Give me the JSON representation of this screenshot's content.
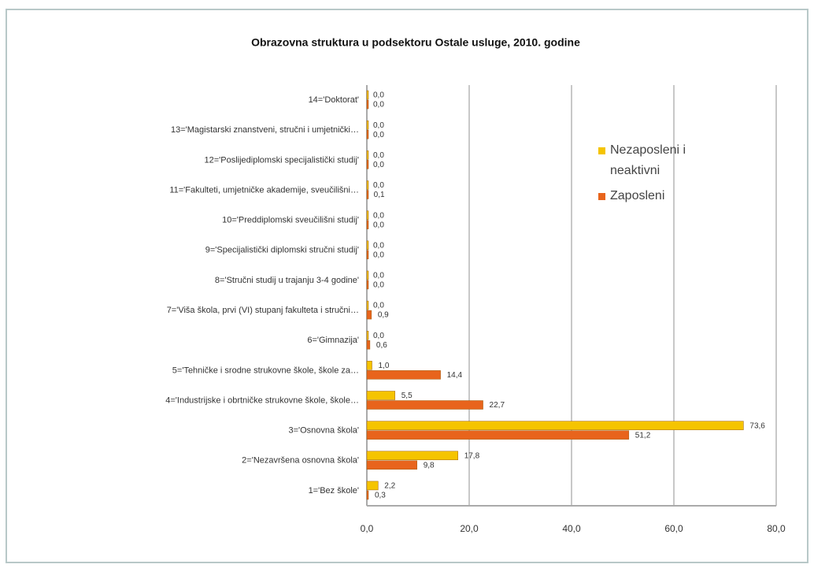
{
  "chart_data": {
    "type": "bar",
    "orientation": "horizontal",
    "title": "Obrazovna struktura u podsektoru Ostale usluge, 2010. godine",
    "categories": [
      "1='Bez škole'",
      "2='Nezavršena osnovna škola'",
      "3='Osnovna škola'",
      "4='Industrijske i obrtničke strukovne škole, škole…",
      "5='Tehničke i srodne strukovne škole, škole za…",
      "6='Gimnazija'",
      "7='Viša škola, prvi (VI) stupanj fakulteta i stručni…",
      "8='Stručni studij u trajanju 3-4 godine'",
      "9='Specijalistički diplomski stručni studij'",
      "10='Preddiplomski sveučilišni studij'",
      "11='Fakulteti, umjetničke akademije, sveučilišni…",
      "12='Poslijediplomski specijalistički studij'",
      "13='Magistarski znanstveni, stručni i umjetnički…",
      "14='Doktorat'"
    ],
    "series": [
      {
        "name": "Nezaposleni i neaktivni",
        "color": "#f5c400",
        "values": [
          2.2,
          17.8,
          73.6,
          5.5,
          1.0,
          0,
          0,
          0,
          0,
          0,
          0,
          0,
          0,
          0
        ],
        "value_labels": [
          "2,2",
          "17,8",
          "73,6",
          "5,5",
          "1,0",
          "0,0",
          "0,0",
          "0,0",
          "0,0",
          "0,0",
          "0,0",
          "0,0",
          "0,0",
          "0,0"
        ]
      },
      {
        "name": "Zaposleni",
        "color": "#e8641c",
        "values": [
          0.3,
          9.8,
          51.2,
          22.7,
          14.4,
          0.6,
          0.9,
          0,
          0,
          0,
          0.1,
          0,
          0,
          0
        ],
        "value_labels": [
          "0,3",
          "9,8",
          "51,2",
          "22,7",
          "14,4",
          "0,6",
          "0,9",
          "0,0",
          "0,0",
          "0,0",
          "0,1",
          "0,0",
          "0,0",
          "0,0"
        ]
      }
    ],
    "xlim": [
      0,
      80
    ],
    "xticks": [
      {
        "value": 0,
        "label": "0,0"
      },
      {
        "value": 20,
        "label": "20,0"
      },
      {
        "value": 40,
        "label": "40,0"
      },
      {
        "value": 60,
        "label": "60,0"
      },
      {
        "value": 80,
        "label": "80,0"
      }
    ],
    "grid": true,
    "legend": "right"
  }
}
